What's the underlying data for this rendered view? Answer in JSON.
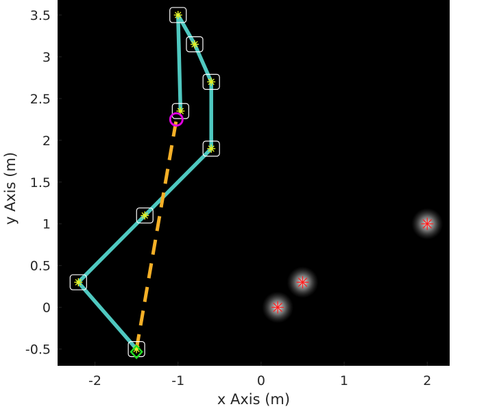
{
  "chart_data": {
    "type": "scatter",
    "xlabel": "x Axis (m)",
    "ylabel": "y Axis (m)",
    "xlim": [
      -2.45,
      2.27
    ],
    "ylim": [
      -0.7,
      3.68
    ],
    "x_ticks": [
      -2,
      -1,
      0,
      1,
      2
    ],
    "x_tick_labels": [
      "-2",
      "-1",
      "0",
      "1",
      "2"
    ],
    "y_ticks": [
      -0.5,
      0,
      0.5,
      1,
      1.5,
      2,
      2.5,
      3,
      3.5
    ],
    "y_tick_labels": [
      "-0.5",
      "0",
      "0.5",
      "1",
      "1.5",
      "2",
      "2.5",
      "3",
      "3.5"
    ],
    "background": "#000000",
    "grid": false,
    "waypoint_path": {
      "color": "#4fc8c0",
      "x": [
        -1.5,
        -2.2,
        -1.4,
        -0.6,
        -0.6,
        -0.8,
        -1.0,
        -0.97
      ],
      "y": [
        -0.5,
        0.3,
        1.1,
        1.9,
        2.7,
        3.15,
        3.5,
        2.35
      ]
    },
    "straight_path": {
      "color": "#f5b027",
      "style": "dashed",
      "x": [
        -1.5,
        -1.02
      ],
      "y": [
        -0.5,
        2.25
      ]
    },
    "start_marker": {
      "shape": "diamond",
      "color": "#22dd22",
      "x": -1.5,
      "y": -0.5
    },
    "current_position": {
      "shape": "circle",
      "color": "#e000e0",
      "x": -1.02,
      "y": 2.25
    },
    "obstacles": {
      "color": "#ff2020",
      "x": [
        0.2,
        0.5,
        2.0
      ],
      "y": [
        0.0,
        0.3,
        1.0
      ]
    },
    "waypoint_marker_color": "#e6f020"
  }
}
